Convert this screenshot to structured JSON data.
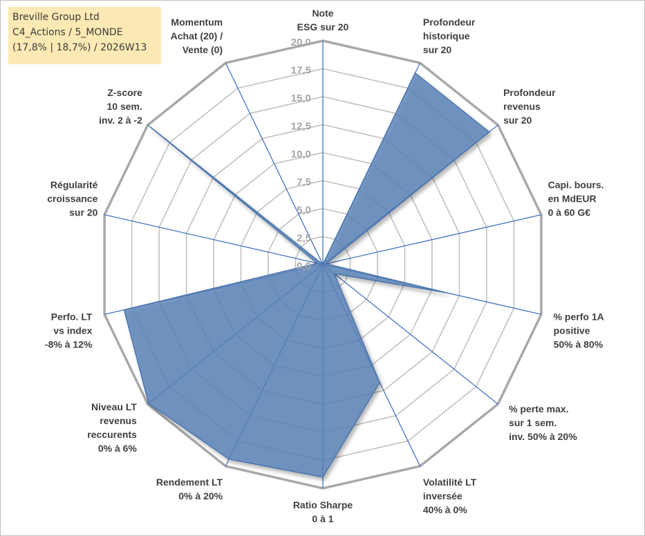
{
  "info_box": {
    "line1": "Breville Group Ltd",
    "line2": "C4_Actions / 5_MONDE",
    "line3": "(17,8% | 18,7%) / 2026W13"
  },
  "chart_data": {
    "type": "radar",
    "title": "",
    "rmax": 20,
    "tick_values": [
      0,
      2.5,
      5,
      7.5,
      10,
      12.5,
      15,
      17.5,
      20
    ],
    "tick_labels": [
      "0,0",
      "2,5",
      "5,0",
      "7,5",
      "10,0",
      "12,5",
      "15,0",
      "17,5",
      "20,0"
    ],
    "grid": true,
    "axes": [
      {
        "label": [
          "Note",
          "ESG sur 20"
        ],
        "value": 0
      },
      {
        "label": [
          "Profondeur",
          "historique",
          "sur 20"
        ],
        "value": 19
      },
      {
        "label": [
          "Profondeur",
          "revenus",
          "sur 20"
        ],
        "value": 19
      },
      {
        "label": [
          "Capi. bours.",
          "en MdEUR",
          "0 à 60 G€"
        ],
        "value": 0.3
      },
      {
        "label": [
          "% perfo 1A",
          "positive",
          "50% à 80%"
        ],
        "value": 11.3
      },
      {
        "label": [
          "% perte max.",
          "sur 1 sem.",
          "inv. 50% à 20%"
        ],
        "value": 1.3
      },
      {
        "label": [
          "Volatilité LT",
          "inversée",
          "40% à 0%"
        ],
        "value": 11.7
      },
      {
        "label": [
          "Ratio Sharpe",
          "0 à 1"
        ],
        "value": 19
      },
      {
        "label": [
          "Rendement LT",
          "0% à 20%"
        ],
        "value": 19.3
      },
      {
        "label": [
          "Niveau LT",
          "revenus",
          "reccurents",
          "0% à 6%"
        ],
        "value": 19.9
      },
      {
        "label": [
          "Perfo. LT",
          "vs index",
          "-8% à 12%"
        ],
        "value": 18.2
      },
      {
        "label": [
          "Régularité",
          "croissance",
          "sur 20"
        ],
        "value": 0.5
      },
      {
        "label": [
          "Z-score",
          "10 sem.",
          "inv. 2 à -2"
        ],
        "value": 19.7
      },
      {
        "label": [
          "Momentum",
          "Achat (20) /",
          "Vente (0)"
        ],
        "value": 0
      }
    ],
    "colors": {
      "fill": "#5b84b8",
      "fill_stroke": "#4a74ad",
      "axis_line": "#4472c4",
      "grid": "#c0c0c0",
      "outer_grid": "#a8a8a8",
      "tick_text": "#a6a6a6",
      "label_text": "#3f3f3f"
    }
  }
}
